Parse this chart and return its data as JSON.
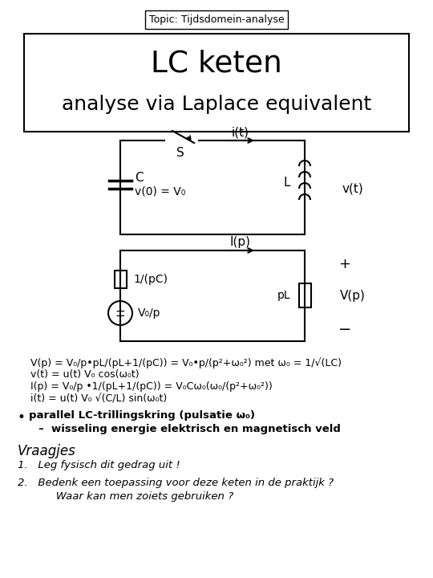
{
  "topic_label": "Topic: Tijdsdomein-analyse",
  "title_line1": "LC keten",
  "title_line2": "analyse via Laplace equivalent",
  "bg_color": "#ffffff",
  "eq1": "V(p) = V₀/p•pL/(pL+1/(pC)) = V₀•p/(p²+ω₀²) met ω₀ = 1/√(LC)",
  "eq2": "v(t) = u(t) V₀ cos(ω₀t)",
  "eq3": "I(p) = V₀/p •1/(pL+1/(pC)) = V₀Cω₀(ω₀/(p²+ω₀²))",
  "eq4": "i(t) = u(t) V₀ √(C/L) sin(ω₀t)",
  "bullet1": "parallel LC-trillingskring (pulsatie ω₀)",
  "dash1": "wisseling energie elektrisch en magnetisch veld",
  "vraagjes": "Vraagjes",
  "q1": "Leg fysisch dit gedrag uit !",
  "q2": "Bedenk een toepassing voor deze keten in de praktijk ?",
  "q2b": "Waar kan men zoiets gebruiken ?"
}
